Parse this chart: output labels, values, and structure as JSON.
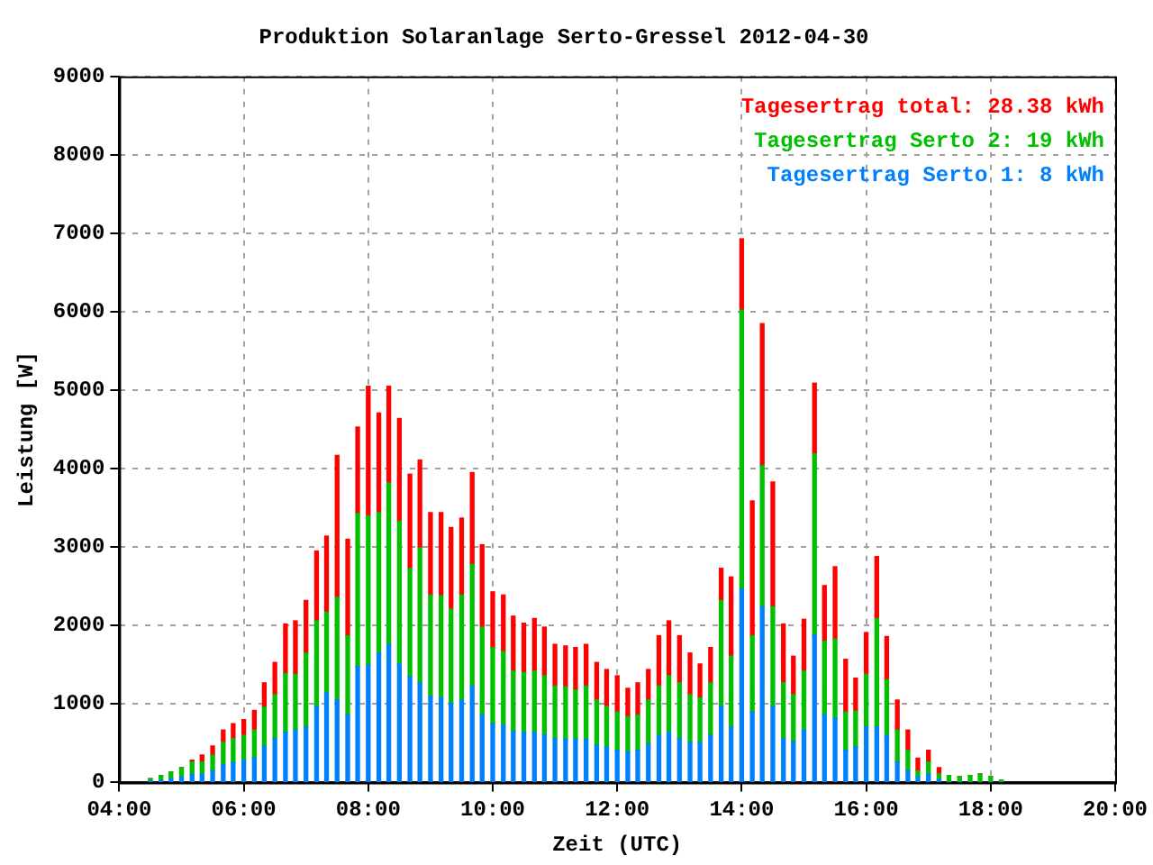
{
  "chart_data": {
    "type": "bar",
    "title": "Produktion Solaranlage Serto-Gressel 2012-04-30",
    "xlabel": "Zeit (UTC)",
    "ylabel": "Leistung [W]",
    "stacked": true,
    "grid": true,
    "legend": "top right",
    "x": [
      4.5,
      4.67,
      4.83,
      5,
      5.17,
      5.33,
      5.5,
      5.67,
      5.83,
      6,
      6.17,
      6.33,
      6.5,
      6.67,
      6.83,
      7,
      7.17,
      7.33,
      7.5,
      7.67,
      7.83,
      8,
      8.17,
      8.33,
      8.5,
      8.67,
      8.83,
      9,
      9.17,
      9.33,
      9.5,
      9.67,
      9.83,
      10,
      10.17,
      10.33,
      10.5,
      10.67,
      10.83,
      11,
      11.17,
      11.33,
      11.5,
      11.67,
      11.83,
      12,
      12.17,
      12.33,
      12.5,
      12.67,
      12.83,
      13,
      13.17,
      13.33,
      13.5,
      13.67,
      13.83,
      14,
      14.17,
      14.33,
      14.5,
      14.67,
      14.83,
      15,
      15.17,
      15.33,
      15.5,
      15.67,
      15.83,
      16,
      16.17,
      16.33,
      16.5,
      16.67,
      16.83,
      17,
      17.17,
      17.33,
      17.5,
      17.67,
      17.83,
      18,
      18.17
    ],
    "series": [
      {
        "name": "Tagesertrag Serto 1: 8 kWh",
        "color": "#0080ff",
        "values": [
          20,
          30,
          50,
          70,
          100,
          105,
          150,
          225,
          255,
          285,
          315,
          465,
          560,
          640,
          670,
          710,
          970,
          1140,
          1050,
          860,
          1480,
          1500,
          1650,
          1760,
          1510,
          1350,
          1270,
          1100,
          1080,
          1010,
          1050,
          1230,
          860,
          750,
          730,
          650,
          640,
          640,
          610,
          560,
          550,
          550,
          550,
          480,
          450,
          410,
          390,
          410,
          490,
          600,
          640,
          560,
          510,
          510,
          600,
          970,
          710,
          2470,
          900,
          2240,
          970,
          560,
          520,
          670,
          1880,
          860,
          820,
          410,
          450,
          710,
          710,
          600,
          260,
          150,
          75,
          110,
          40,
          0,
          0,
          0,
          0,
          0,
          0
        ]
      },
      {
        "name": "Tagesertrag Serto 2: 19 kWh",
        "color": "#00c000",
        "values": [
          30,
          60,
          85,
          120,
          160,
          155,
          200,
          285,
          305,
          315,
          355,
          495,
          560,
          750,
          710,
          940,
          1090,
          1030,
          1310,
          1010,
          1950,
          1900,
          1790,
          2060,
          1820,
          1380,
          1720,
          1290,
          1300,
          1200,
          1340,
          1550,
          1120,
          970,
          940,
          770,
          760,
          780,
          750,
          670,
          670,
          630,
          680,
          570,
          520,
          490,
          450,
          450,
          560,
          630,
          720,
          710,
          610,
          570,
          670,
          1350,
          900,
          3550,
          970,
          1800,
          1270,
          710,
          600,
          750,
          2310,
          940,
          1010,
          490,
          460,
          670,
          1380,
          710,
          410,
          260,
          75,
          150,
          70,
          90,
          75,
          90,
          110,
          75,
          30
        ]
      },
      {
        "name": "Tagesertrag total: 28.38 kWh",
        "color": "#ff0000",
        "values": [
          0,
          0,
          0,
          0,
          25,
          90,
          115,
          160,
          190,
          200,
          250,
          310,
          410,
          630,
          680,
          670,
          890,
          970,
          1810,
          1230,
          1100,
          1650,
          1270,
          1230,
          1310,
          1200,
          1120,
          1050,
          1060,
          1040,
          980,
          1170,
          1050,
          710,
          720,
          700,
          630,
          670,
          620,
          530,
          520,
          540,
          530,
          480,
          470,
          460,
          360,
          410,
          390,
          640,
          700,
          600,
          530,
          430,
          450,
          410,
          1010,
          910,
          1720,
          1810,
          1590,
          750,
          490,
          660,
          900,
          710,
          920,
          670,
          420,
          530,
          790,
          550,
          380,
          260,
          160,
          150,
          80,
          0,
          0,
          0,
          0,
          0,
          0
        ]
      }
    ],
    "xlim": [
      4,
      20
    ],
    "xticks": [
      {
        "value": 4,
        "label": "04:00"
      },
      {
        "value": 6,
        "label": "06:00"
      },
      {
        "value": 8,
        "label": "08:00"
      },
      {
        "value": 10,
        "label": "10:00"
      },
      {
        "value": 12,
        "label": "12:00"
      },
      {
        "value": 14,
        "label": "14:00"
      },
      {
        "value": 16,
        "label": "16:00"
      },
      {
        "value": 18,
        "label": "18:00"
      },
      {
        "value": 20,
        "label": "20:00"
      }
    ],
    "ylim": [
      0,
      9000
    ],
    "yticks": [
      0,
      1000,
      2000,
      3000,
      4000,
      5000,
      6000,
      7000,
      8000,
      9000
    ]
  }
}
